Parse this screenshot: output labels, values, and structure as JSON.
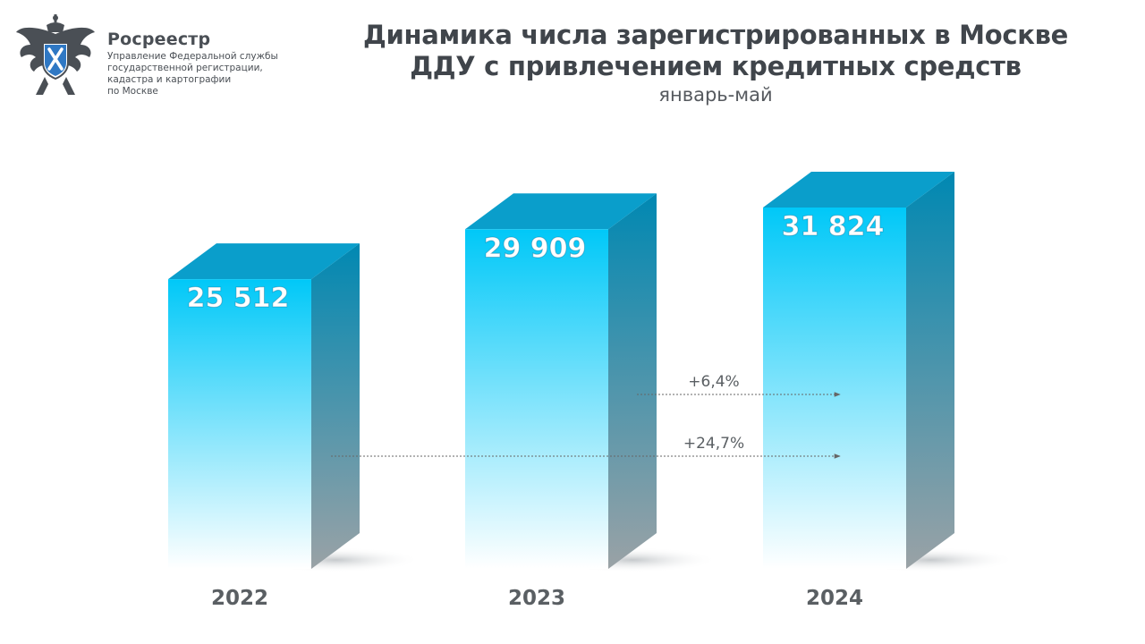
{
  "brand": {
    "name": "Росреестр",
    "subtitle_lines": [
      "Управление Федеральной службы",
      "государственной регистрации,",
      "кадастра и картографии",
      "по Москве"
    ]
  },
  "chart_data": {
    "type": "bar",
    "title_lines": [
      "Динамика числа зарегистрированных в Москве",
      "ДДУ с привлечением кредитных средств"
    ],
    "subtitle": "январь-май",
    "categories": [
      "2022",
      "2023",
      "2024"
    ],
    "values": [
      25512,
      29909,
      31824
    ],
    "value_labels": [
      "25 512",
      "29 909",
      "31 824"
    ],
    "ylim": [
      0,
      31824
    ],
    "annotations": [
      {
        "text": "+6,4%",
        "from": "2023",
        "to": "2024"
      },
      {
        "text": "+24,7%",
        "from": "2022",
        "to": "2024"
      }
    ],
    "colors": {
      "bar_top": "#00c8f8",
      "bar_bottom": "#ffffff",
      "side_top": "#0088b2",
      "side_bottom": "#9aa2a6",
      "cap": "#0a9ecb",
      "label": "#5a5f63",
      "arrow": "#666666"
    }
  }
}
